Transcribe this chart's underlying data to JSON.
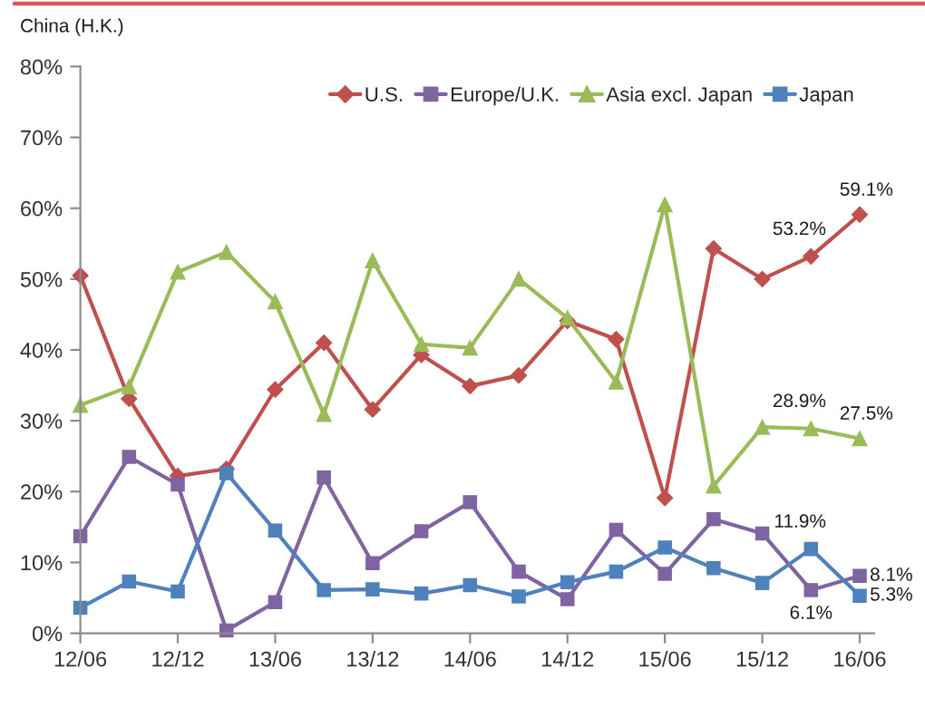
{
  "chart_data": {
    "type": "line",
    "title": "China (H.K.)",
    "categories": [
      "12/06",
      null,
      "12/12",
      null,
      "13/06",
      null,
      "13/12",
      null,
      "14/06",
      null,
      "14/12",
      null,
      "15/06",
      null,
      "15/12",
      null,
      "16/06"
    ],
    "ylim": [
      0,
      80
    ],
    "yticks": [
      {
        "value": 0,
        "label": "0%"
      },
      {
        "value": 10,
        "label": "10%"
      },
      {
        "value": 20,
        "label": "20%"
      },
      {
        "value": 30,
        "label": "30%"
      },
      {
        "value": 40,
        "label": "40%"
      },
      {
        "value": 50,
        "label": "50%"
      },
      {
        "value": 60,
        "label": "60%"
      },
      {
        "value": 70,
        "label": "70%"
      },
      {
        "value": 80,
        "label": "80%"
      }
    ],
    "legend": "top right",
    "grid": false,
    "line_style": "solid",
    "series": [
      {
        "name": "U.S.",
        "color": "#c0504d",
        "marker": "diamond",
        "values": [
          50.5,
          33.1,
          22.2,
          23.2,
          34.4,
          41.0,
          31.6,
          39.3,
          34.9,
          36.4,
          44.1,
          41.5,
          19.1,
          54.3,
          50.0,
          53.2,
          59.1
        ],
        "value_labels": [
          null,
          null,
          null,
          null,
          null,
          null,
          null,
          null,
          null,
          null,
          null,
          null,
          null,
          null,
          null,
          "53.2%",
          "59.1%"
        ]
      },
      {
        "name": "Europe/U.K.",
        "color": "#8064a2",
        "marker": "square",
        "values": [
          13.7,
          24.9,
          21.0,
          0.4,
          4.4,
          22.0,
          9.9,
          14.4,
          18.5,
          8.7,
          4.8,
          14.6,
          8.4,
          16.1,
          14.1,
          6.1,
          8.1
        ],
        "value_labels": [
          null,
          null,
          null,
          null,
          null,
          null,
          null,
          null,
          null,
          null,
          null,
          null,
          null,
          null,
          null,
          "6.1%",
          "8.1%"
        ]
      },
      {
        "name": "Asia excl. Japan",
        "color": "#9bbb59",
        "marker": "triangle",
        "values": [
          32.2,
          34.8,
          51.0,
          53.8,
          46.8,
          30.9,
          52.6,
          40.8,
          40.3,
          50.0,
          44.5,
          35.5,
          60.5,
          20.8,
          29.1,
          28.9,
          27.5
        ],
        "value_labels": [
          null,
          null,
          null,
          null,
          null,
          null,
          null,
          null,
          null,
          null,
          null,
          null,
          null,
          null,
          null,
          "28.9%",
          "27.5%"
        ]
      },
      {
        "name": "Japan",
        "color": "#4f81bd",
        "marker": "square",
        "values": [
          3.6,
          7.3,
          5.9,
          22.6,
          14.5,
          6.1,
          6.2,
          5.6,
          6.8,
          5.2,
          7.2,
          8.7,
          12.1,
          9.2,
          7.1,
          11.9,
          5.3
        ],
        "value_labels": [
          null,
          null,
          null,
          null,
          null,
          null,
          null,
          null,
          null,
          null,
          null,
          null,
          null,
          null,
          null,
          "11.9%",
          "5.3%"
        ]
      }
    ]
  }
}
